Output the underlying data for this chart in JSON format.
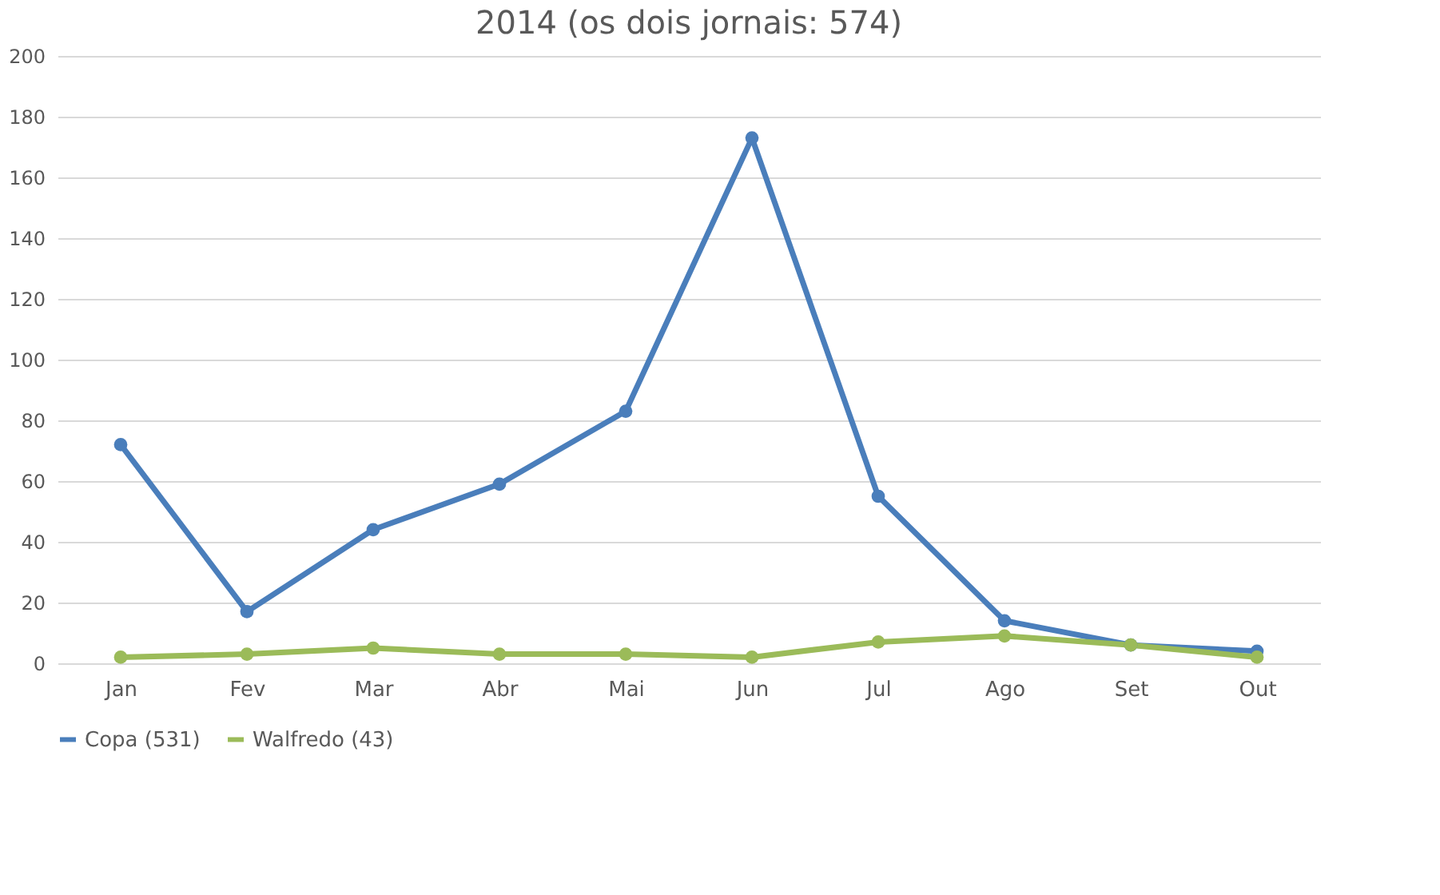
{
  "chart_data": {
    "type": "line",
    "title": "2014 (os dois jornais: 574)",
    "categories": [
      "Jan",
      "Fev",
      "Mar",
      "Abr",
      "Mai",
      "Jun",
      "Jul",
      "Ago",
      "Set",
      "Out"
    ],
    "series": [
      {
        "name": "Copa (531)",
        "color": "#4a7ebb",
        "values": [
          72,
          17,
          44,
          59,
          83,
          173,
          55,
          14,
          6,
          4
        ]
      },
      {
        "name": "Walfredo (43)",
        "color": "#9bbb59",
        "values": [
          2,
          3,
          5,
          3,
          3,
          2,
          7,
          9,
          6,
          2
        ]
      }
    ],
    "ylim": [
      0,
      200
    ],
    "yticks": [
      0,
      20,
      40,
      60,
      80,
      100,
      120,
      140,
      160,
      180,
      200
    ],
    "grid": "y",
    "legend": "bottom",
    "marker": "circle",
    "line_style": "solid"
  }
}
